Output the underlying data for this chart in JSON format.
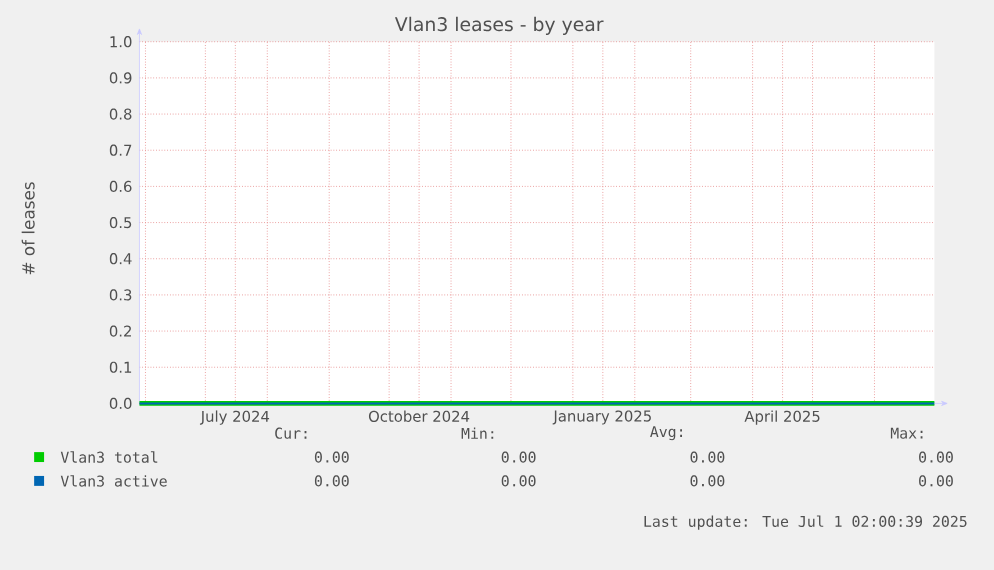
{
  "chart_data": {
    "type": "line",
    "title": "Vlan3 leases - by year",
    "ylabel": "# of leases",
    "x": [
      "2024-05-29",
      "2025-07-01"
    ],
    "series": [
      {
        "name": "Vlan3 total",
        "color": "#00cc00",
        "values": [
          0,
          0
        ]
      },
      {
        "name": "Vlan3 active",
        "color": "#0066b3",
        "values": [
          0,
          0
        ]
      }
    ],
    "xlim": [
      "2024-05-29",
      "2025-07-01"
    ],
    "xticks": [
      {
        "value": "2024-06-01",
        "label": null
      },
      {
        "value": "2024-07-01",
        "label": null
      },
      {
        "value": "2024-07-16",
        "label": "July 2024"
      },
      {
        "value": "2024-08-01",
        "label": null
      },
      {
        "value": "2024-09-01",
        "label": null
      },
      {
        "value": "2024-10-01",
        "label": null
      },
      {
        "value": "2024-10-16",
        "label": "October 2024"
      },
      {
        "value": "2024-11-01",
        "label": null
      },
      {
        "value": "2024-12-01",
        "label": null
      },
      {
        "value": "2025-01-01",
        "label": null
      },
      {
        "value": "2025-01-16",
        "label": "January 2025"
      },
      {
        "value": "2025-02-01",
        "label": null
      },
      {
        "value": "2025-03-01",
        "label": null
      },
      {
        "value": "2025-04-01",
        "label": null
      },
      {
        "value": "2025-04-16",
        "label": "April 2025"
      },
      {
        "value": "2025-05-01",
        "label": null
      },
      {
        "value": "2025-06-01",
        "label": null
      }
    ],
    "ylim": [
      0,
      1
    ],
    "yticks": [
      {
        "value": 0,
        "label": "0.0"
      },
      {
        "value": 0.1,
        "label": "0.1"
      },
      {
        "value": 0.2,
        "label": "0.2"
      },
      {
        "value": 0.3,
        "label": "0.3"
      },
      {
        "value": 0.4,
        "label": "0.4"
      },
      {
        "value": 0.5,
        "label": "0.5"
      },
      {
        "value": 0.6,
        "label": "0.6"
      },
      {
        "value": 0.7,
        "label": "0.7"
      },
      {
        "value": 0.8,
        "label": "0.8"
      },
      {
        "value": 0.9,
        "label": "0.9"
      },
      {
        "value": 1,
        "label": "1.0"
      }
    ],
    "grid": true,
    "legend": "bottom",
    "marker": "none",
    "line_style": "solid",
    "annotations": [
      "Cur:",
      "Min:",
      "Avg:",
      "Max:",
      "0.00",
      "0.00",
      "0.00",
      "0.00",
      "0.00",
      "0.00",
      "0.00",
      "0.00",
      "Last update:  Tue Jul  1 02:00:39 2025"
    ]
  }
}
